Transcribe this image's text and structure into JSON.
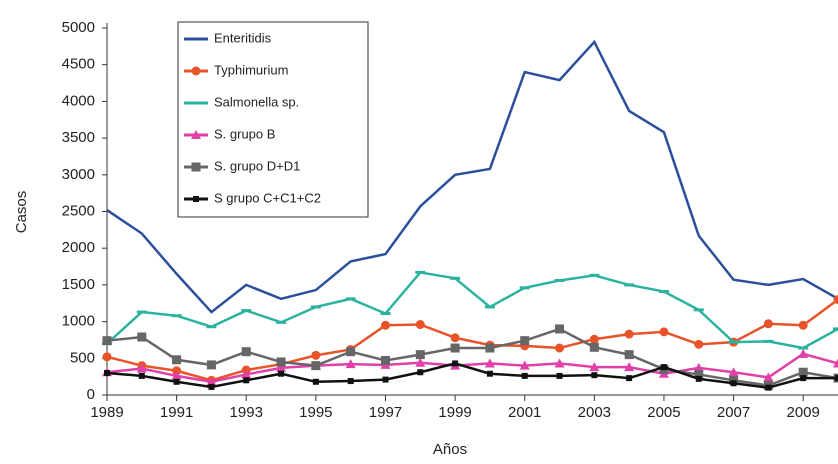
{
  "chart_data": {
    "type": "line",
    "x": [
      1989,
      1990,
      1991,
      1992,
      1993,
      1994,
      1995,
      1996,
      1997,
      1998,
      1999,
      2000,
      2001,
      2002,
      2003,
      2004,
      2005,
      2006,
      2007,
      2008,
      2009,
      2010
    ],
    "xlim": [
      1989,
      2010
    ],
    "xticks": [
      1989,
      1991,
      1993,
      1995,
      1997,
      1999,
      2001,
      2003,
      2005,
      2007,
      2009
    ],
    "ylim": [
      0,
      5000
    ],
    "yticks": [
      0,
      500,
      1000,
      1500,
      2000,
      2500,
      3000,
      3500,
      4000,
      4500,
      5000
    ],
    "x_label": "Años",
    "y_label": "Casos",
    "series": [
      {
        "name": "Enteritidis",
        "color": "#2c4f9c",
        "marker": "none",
        "values": [
          2520,
          2200,
          1650,
          1130,
          1500,
          1310,
          1430,
          1820,
          1920,
          2570,
          3000,
          3080,
          4400,
          4290,
          4810,
          3870,
          3580,
          2170,
          1570,
          1500,
          1580,
          1310
        ]
      },
      {
        "name": "Typhimurium",
        "color": "#e8532a",
        "marker": "circle",
        "values": [
          520,
          400,
          330,
          200,
          340,
          420,
          540,
          620,
          950,
          960,
          780,
          680,
          670,
          640,
          760,
          830,
          860,
          690,
          720,
          970,
          950,
          1300
        ]
      },
      {
        "name": "Salmonella sp.",
        "color": "#2bb3a0",
        "marker": "dash",
        "values": [
          700,
          1130,
          1080,
          930,
          1150,
          990,
          1200,
          1310,
          1110,
          1670,
          1590,
          1200,
          1460,
          1560,
          1630,
          1500,
          1410,
          1160,
          720,
          730,
          640,
          900
        ]
      },
      {
        "name": "S. grupo B",
        "color": "#e040a8",
        "marker": "triangle",
        "values": [
          310,
          360,
          260,
          180,
          280,
          370,
          400,
          420,
          410,
          440,
          400,
          430,
          400,
          430,
          380,
          380,
          290,
          370,
          310,
          240,
          560,
          430
        ]
      },
      {
        "name": "S. grupo D+D1",
        "color": "#666666",
        "marker": "square",
        "values": [
          740,
          790,
          480,
          410,
          590,
          450,
          400,
          590,
          470,
          550,
          640,
          640,
          740,
          900,
          650,
          550,
          350,
          280,
          200,
          130,
          310,
          230
        ]
      },
      {
        "name": "S grupo C+C1+C2",
        "color": "#111111",
        "marker": "smallsquare",
        "values": [
          300,
          260,
          180,
          110,
          200,
          290,
          180,
          190,
          210,
          310,
          430,
          290,
          260,
          260,
          270,
          230,
          380,
          220,
          160,
          100,
          230,
          230
        ]
      }
    ]
  }
}
